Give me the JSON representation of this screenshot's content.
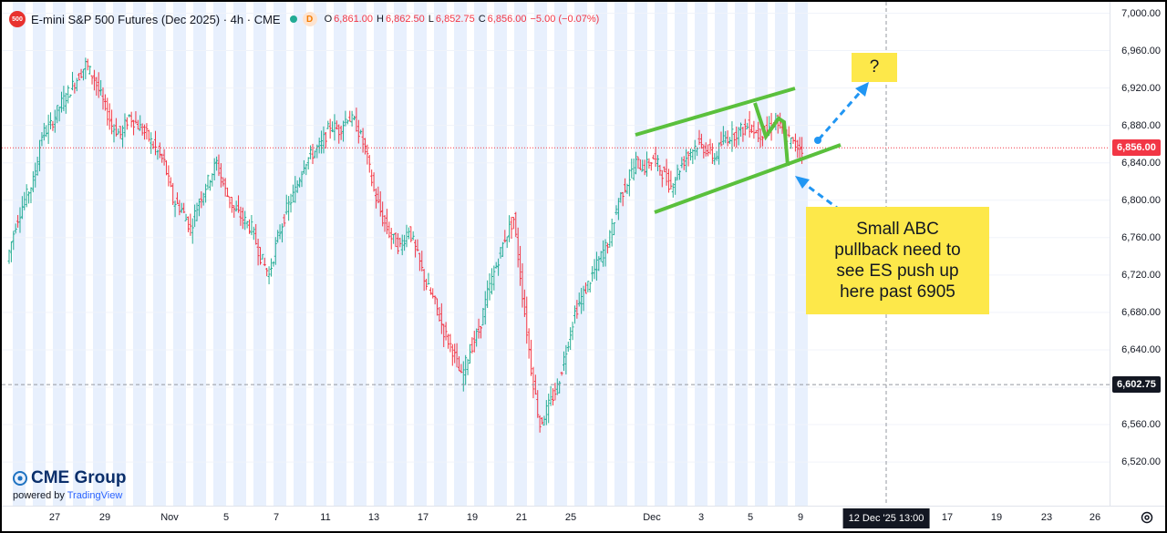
{
  "legend": {
    "logo_text": "500",
    "title": "E-mini S&P 500 Futures (Dec 2025) · 4h · CME",
    "badge": "D",
    "open_label": "O",
    "open": "6,861.00",
    "high_label": "H",
    "high": "6,862.50",
    "low_label": "L",
    "low": "6,852.75",
    "close_label": "C",
    "close": "6,856.00",
    "change": "−5.00 (−0.07%)"
  },
  "price_axis": {
    "ticks": [
      "7,000.00",
      "6,960.00",
      "6,920.00",
      "6,880.00",
      "6,840.00",
      "6,800.00",
      "6,760.00",
      "6,720.00",
      "6,680.00",
      "6,640.00",
      "6,600.00",
      "6,560.00",
      "6,520.00"
    ],
    "last_price_label": "6,856.00",
    "crosshair_price_label": "6,602.75"
  },
  "time_axis": {
    "ticks": [
      "27",
      "29",
      "Nov",
      "5",
      "7",
      "11",
      "13",
      "17",
      "19",
      "21",
      "25",
      "Dec",
      "3",
      "5",
      "9",
      "17",
      "19",
      "23",
      "26"
    ],
    "crosshair_time_label": "12 Dec '25   13:00"
  },
  "annotations": {
    "question": "?",
    "callout": "Small ABC\npullback need to\nsee ES push up\nhere past 6905"
  },
  "branding": {
    "name": "CME Group",
    "powered_prefix": "powered by",
    "powered_brand": "TradingView"
  },
  "colors": {
    "up": "#22ab94",
    "down": "#f23645",
    "channel": "#5ac03c",
    "arrow": "#2196f3",
    "session_band": "#e8f0fd",
    "note": "#fde84a"
  },
  "chart_data": {
    "type": "candlestick",
    "symbol": "E-mini S&P 500 Futures (Dec 2025)",
    "interval": "4h",
    "ylim": [
      6500,
      7010
    ],
    "last_price": 6856.0,
    "crosshair_price": 6602.75,
    "crosshair_time": "12 Dec '25 13:00",
    "x_tick_labels": [
      "27",
      "29",
      "Nov",
      "5",
      "7",
      "11",
      "13",
      "17",
      "19",
      "21",
      "25",
      "Dec",
      "3",
      "5",
      "9",
      "17",
      "19",
      "23",
      "26"
    ],
    "y_ticks": [
      7000,
      6960,
      6920,
      6880,
      6840,
      6800,
      6760,
      6720,
      6680,
      6640,
      6600,
      6560,
      6520
    ],
    "close_path": [
      6735,
      6775,
      6800,
      6820,
      6870,
      6880,
      6900,
      6915,
      6930,
      6945,
      6930,
      6905,
      6880,
      6870,
      6890,
      6880,
      6870,
      6855,
      6840,
      6800,
      6790,
      6770,
      6800,
      6820,
      6840,
      6810,
      6790,
      6780,
      6770,
      6740,
      6720,
      6760,
      6790,
      6810,
      6840,
      6850,
      6860,
      6880,
      6875,
      6890,
      6880,
      6855,
      6810,
      6780,
      6760,
      6750,
      6770,
      6740,
      6710,
      6690,
      6660,
      6640,
      6610,
      6640,
      6660,
      6700,
      6730,
      6760,
      6780,
      6700,
      6620,
      6560,
      6580,
      6600,
      6640,
      6680,
      6700,
      6720,
      6740,
      6760,
      6800,
      6820,
      6840,
      6835,
      6845,
      6830,
      6815,
      6835,
      6850,
      6860,
      6855,
      6845,
      6865,
      6870,
      6875,
      6880,
      6870,
      6875,
      6885,
      6870,
      6860,
      6856
    ],
    "channel_upper": [
      [
        6880,
        6920
      ]
    ],
    "channel_lower": [
      [
        6790,
        6860
      ]
    ],
    "abc_pattern": "A-B-C pullback",
    "note": "Small ABC pullback need to see ES push up here past 6905"
  }
}
